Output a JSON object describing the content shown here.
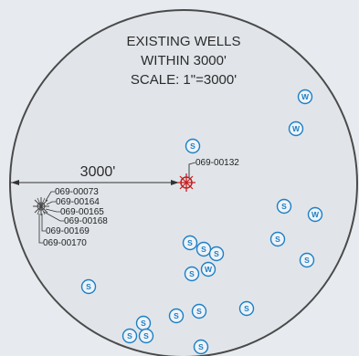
{
  "map": {
    "title_lines": [
      "EXISTING WELLS",
      "WITHIN 3000'",
      "SCALE: 1\"=3000'"
    ],
    "radius_label": "3000'",
    "subject_well": {
      "label": "069-00132",
      "color": "#c81e1e"
    },
    "cluster_wells": [
      {
        "label": "069-00073"
      },
      {
        "label": "069-00164"
      },
      {
        "label": "069-00165"
      },
      {
        "label": "069-00168"
      },
      {
        "label": "069-00169"
      },
      {
        "label": "069-00170"
      }
    ],
    "symbols": [
      {
        "kind": "W",
        "letter": "W"
      },
      {
        "kind": "W",
        "letter": "W"
      },
      {
        "kind": "S",
        "letter": "S"
      },
      {
        "kind": "S",
        "letter": "S"
      },
      {
        "kind": "W",
        "letter": "W"
      },
      {
        "kind": "S",
        "letter": "S"
      },
      {
        "kind": "S",
        "letter": "S"
      },
      {
        "kind": "S",
        "letter": "S"
      },
      {
        "kind": "S",
        "letter": "S"
      },
      {
        "kind": "S",
        "letter": "S"
      },
      {
        "kind": "W",
        "letter": "W"
      },
      {
        "kind": "S",
        "letter": "S"
      },
      {
        "kind": "S",
        "letter": "S"
      },
      {
        "kind": "S",
        "letter": "S"
      },
      {
        "kind": "S",
        "letter": "S"
      },
      {
        "kind": "S",
        "letter": "S"
      },
      {
        "kind": "S",
        "letter": "S"
      },
      {
        "kind": "S",
        "letter": "S"
      },
      {
        "kind": "S",
        "letter": "S"
      },
      {
        "kind": "S",
        "letter": "S"
      }
    ],
    "colors": {
      "background": "#e7eaee",
      "circle_fill": "#e1e5ea",
      "circle_stroke": "#4a4a4a",
      "symbol": "#1e7fc4",
      "subject": "#c81e1e",
      "lines": "#333333"
    }
  }
}
